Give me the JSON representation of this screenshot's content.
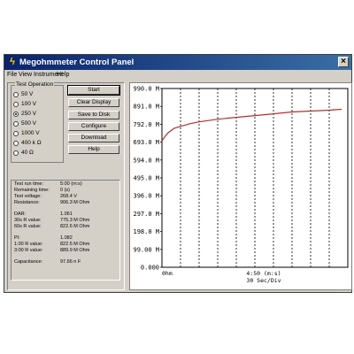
{
  "window": {
    "title": "Megohmmeter Control Panel",
    "icon": "lightning-icon",
    "menu": [
      "File",
      "View",
      "Instrument",
      "Help"
    ]
  },
  "test_operation": {
    "title": "Test Operation",
    "options": [
      "50 V",
      "100 V",
      "250 V",
      "500 V",
      "1000 V",
      "400 k Ω",
      "40 Ω"
    ],
    "selected": "250 V"
  },
  "buttons": {
    "start": "Start",
    "clear_display": "Clear Display",
    "save_to_disk": "Save to Disk",
    "configure": "Configure",
    "download": "Download",
    "help": "Help"
  },
  "readings": {
    "test_run_time": {
      "label": "Test run time:",
      "value": "5:00 (m:s)"
    },
    "remaining_time": {
      "label": "Remaining time:",
      "value": "0 (s)"
    },
    "test_voltage": {
      "label": "Test voltage:",
      "value": "268.4  V"
    },
    "resistance": {
      "label": "Resistance:",
      "value": "906.3 M Ohm"
    },
    "dar": {
      "label": "DAR:",
      "value": "1.061"
    },
    "r30": {
      "label": "30s R value:",
      "value": "775.3 M Ohm"
    },
    "r60": {
      "label": "60s R value:",
      "value": "822.6 M Ohm"
    },
    "pi": {
      "label": "PI:",
      "value": "1.082"
    },
    "r100": {
      "label": "1:00 R value:",
      "value": "822.5 M Ohm"
    },
    "r300": {
      "label": "3:00 R value:",
      "value": "889.9 M Ohm"
    },
    "capacitance": {
      "label": "Capacitance:",
      "value": "97.66 n F"
    }
  },
  "chart_data": {
    "type": "line",
    "title": "",
    "y_ticks": [
      "990.0 M",
      "891.0 M",
      "792.0 M",
      "693.0 M",
      "594.0 M",
      "495.0 M",
      "396.0 M",
      "297.0 M",
      "198.0 M",
      "99.00 M",
      "0.000"
    ],
    "ylim": [
      0,
      990
    ],
    "x_start_label": "0hm",
    "x_label_time": "4:50 (m:s)",
    "x_label_scale": "30 Sec/Div",
    "xlim": [
      0,
      300
    ],
    "grid_vertical": true,
    "series": [
      {
        "color": "#b03030",
        "x": [
          0,
          5,
          10,
          20,
          30,
          45,
          60,
          90,
          120,
          150,
          180,
          210,
          240,
          270,
          290
        ],
        "y": [
          700,
          725,
          745,
          770,
          780,
          795,
          805,
          820,
          830,
          840,
          850,
          860,
          865,
          870,
          875
        ]
      }
    ]
  }
}
